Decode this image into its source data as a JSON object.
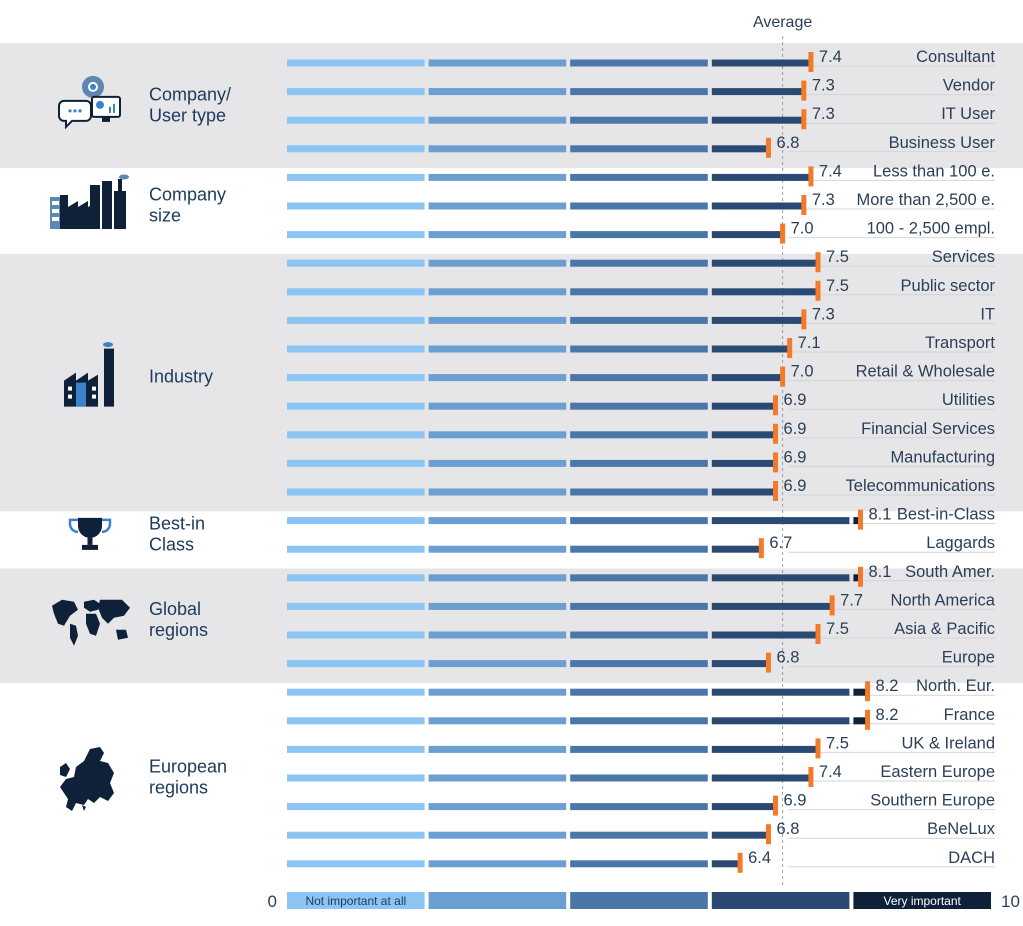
{
  "chart_data": {
    "type": "bar",
    "average_label": "Average",
    "average_value": 7.0,
    "xlim": [
      0,
      10
    ],
    "axis_min_label": "0",
    "axis_max_label": "10",
    "scale_segments": [
      {
        "label": "Not important at all",
        "color": "#8cc4f4"
      },
      {
        "label": "",
        "color": "#6b9fd1"
      },
      {
        "label": "",
        "color": "#4a76a8"
      },
      {
        "label": "",
        "color": "#2a4a73"
      },
      {
        "label": "Very important",
        "color": "#0f2139"
      }
    ],
    "colors": {
      "marker": "#f47a2a",
      "band": "#e6e6e8",
      "text": "#2a3f57"
    },
    "groups": [
      {
        "name_lines": [
          "Company/",
          "User type"
        ],
        "icon": "gear-monitor-chat-icon",
        "shaded": true,
        "rows": [
          {
            "label": "Consultant",
            "value": 7.4,
            "value_label": "7.4"
          },
          {
            "label": "Vendor",
            "value": 7.3,
            "value_label": "7.3"
          },
          {
            "label": "IT User",
            "value": 7.3,
            "value_label": "7.3"
          },
          {
            "label": "Business User",
            "value": 6.8,
            "value_label": "6.8"
          }
        ]
      },
      {
        "name_lines": [
          "Company",
          "size"
        ],
        "icon": "factory-buildings-icon",
        "shaded": false,
        "rows": [
          {
            "label": "Less than 100 e.",
            "value": 7.4,
            "value_label": "7.4"
          },
          {
            "label": "More than 2,500 e.",
            "value": 7.3,
            "value_label": "7.3"
          },
          {
            "label": "100 - 2,500 empl.",
            "value": 7.0,
            "value_label": "7.0"
          }
        ]
      },
      {
        "name_lines": [
          "Industry"
        ],
        "icon": "factory-icon",
        "shaded": true,
        "rows": [
          {
            "label": "Services",
            "value": 7.5,
            "value_label": "7.5"
          },
          {
            "label": "Public sector",
            "value": 7.5,
            "value_label": "7.5"
          },
          {
            "label": "IT",
            "value": 7.3,
            "value_label": "7.3"
          },
          {
            "label": "Transport",
            "value": 7.1,
            "value_label": "7.1"
          },
          {
            "label": "Retail & Wholesale",
            "value": 7.0,
            "value_label": "7.0"
          },
          {
            "label": "Utilities",
            "value": 6.9,
            "value_label": "6.9"
          },
          {
            "label": "Financial Services",
            "value": 6.9,
            "value_label": "6.9"
          },
          {
            "label": "Manufacturing",
            "value": 6.9,
            "value_label": "6.9"
          },
          {
            "label": "Telecommunications",
            "value": 6.9,
            "value_label": "6.9"
          }
        ]
      },
      {
        "name_lines": [
          "Best-in",
          "Class"
        ],
        "icon": "trophy-icon",
        "shaded": false,
        "rows": [
          {
            "label": "Best-in-Class",
            "value": 8.1,
            "value_label": "8.1"
          },
          {
            "label": "Laggards",
            "value": 6.7,
            "value_label": "6.7"
          }
        ]
      },
      {
        "name_lines": [
          "Global",
          "regions"
        ],
        "icon": "world-map-icon",
        "shaded": true,
        "rows": [
          {
            "label": "South Amer.",
            "value": 8.1,
            "value_label": "8.1"
          },
          {
            "label": "North America",
            "value": 7.7,
            "value_label": "7.7"
          },
          {
            "label": "Asia & Pacific",
            "value": 7.5,
            "value_label": "7.5"
          },
          {
            "label": "Europe",
            "value": 6.8,
            "value_label": "6.8"
          }
        ]
      },
      {
        "name_lines": [
          "European",
          "regions"
        ],
        "icon": "europe-map-icon",
        "shaded": false,
        "rows": [
          {
            "label": "North. Eur.",
            "value": 8.2,
            "value_label": "8.2"
          },
          {
            "label": "France",
            "value": 8.2,
            "value_label": "8.2"
          },
          {
            "label": "UK & Ireland",
            "value": 7.5,
            "value_label": "7.5"
          },
          {
            "label": "Eastern Europe",
            "value": 7.4,
            "value_label": "7.4"
          },
          {
            "label": "Southern Europe",
            "value": 6.9,
            "value_label": "6.9"
          },
          {
            "label": "BeNeLux",
            "value": 6.8,
            "value_label": "6.8"
          },
          {
            "label": "DACH",
            "value": 6.4,
            "value_label": "6.4"
          }
        ]
      }
    ]
  }
}
